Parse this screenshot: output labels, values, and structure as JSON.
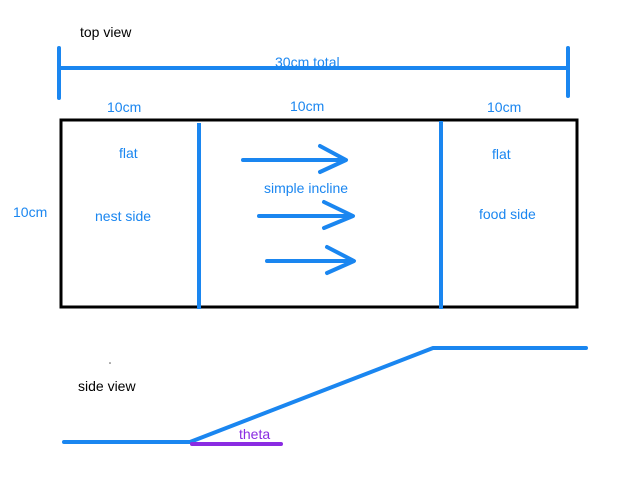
{
  "top_view": {
    "title": "top view",
    "total_length_label": "30cm total",
    "section_width_labels": [
      "10cm",
      "10cm",
      "10cm"
    ],
    "height_label": "10cm",
    "left_section": {
      "surface": "flat",
      "name": "nest side"
    },
    "middle_section": {
      "name": "simple incline",
      "arrow_count": 3
    },
    "right_section": {
      "surface": "flat",
      "name": "food side"
    }
  },
  "side_view": {
    "title": "side view",
    "angle_label": "theta"
  },
  "colors": {
    "blue": "#1a86f0",
    "black": "#000000",
    "purple": "#8a2be2"
  }
}
